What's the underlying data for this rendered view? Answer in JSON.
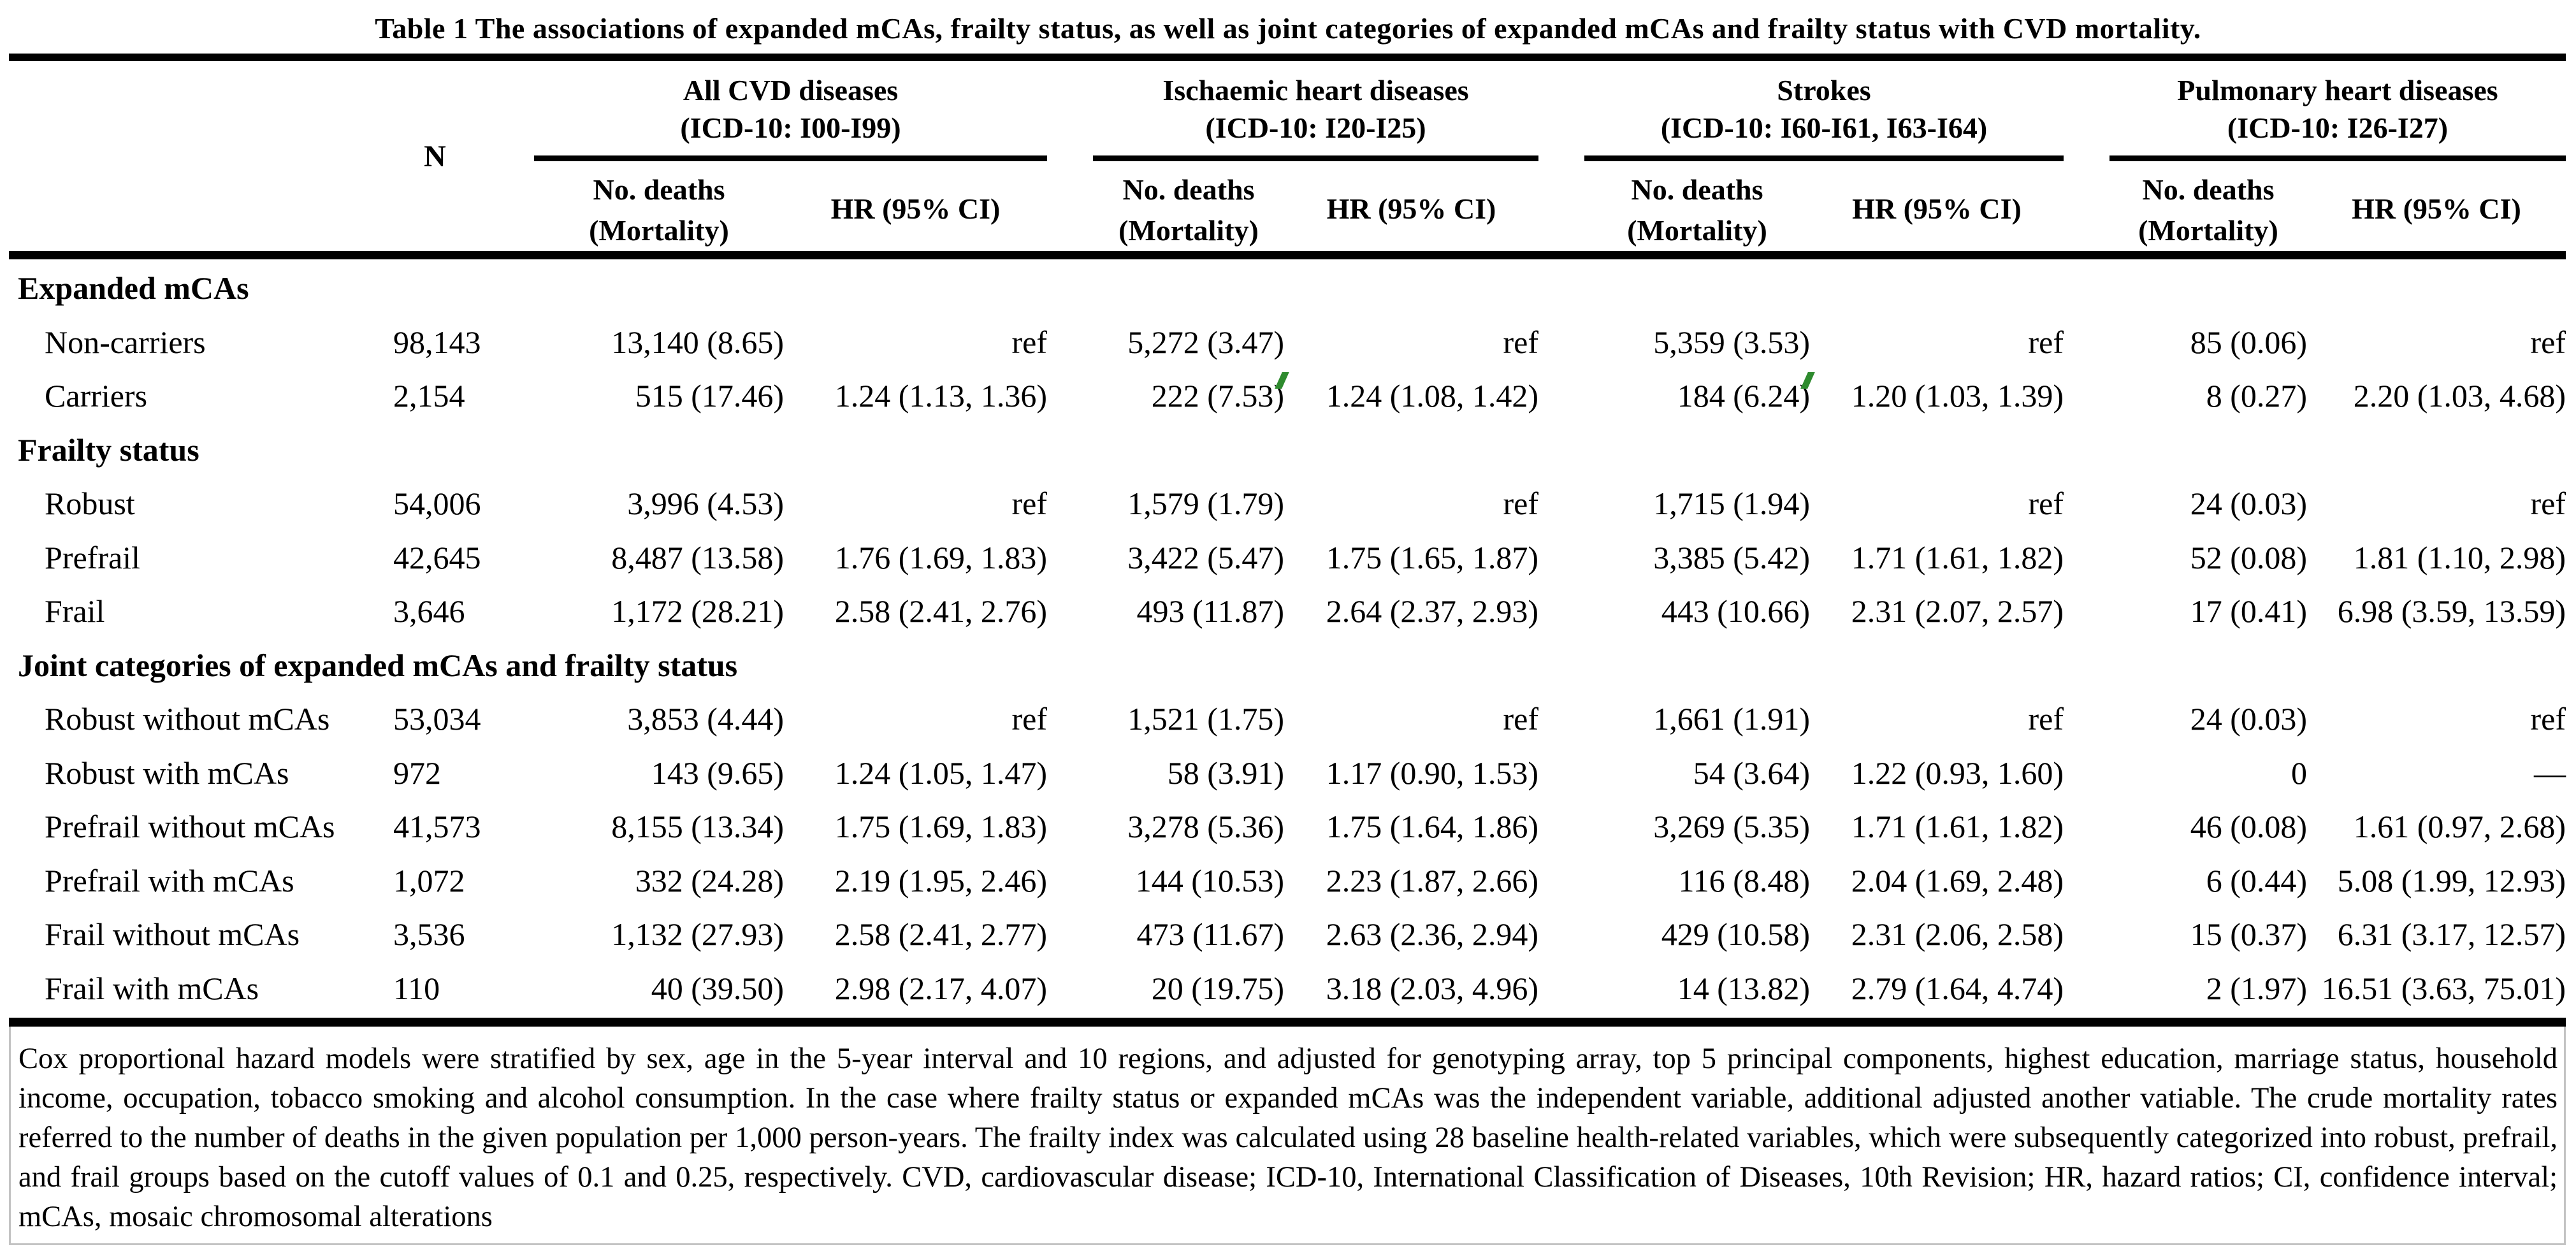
{
  "title": "Table 1 The associations of expanded mCAs, frailty status, as well as joint categories of expanded mCAs and frailty status with CVD mortality.",
  "header": {
    "n_label": "N",
    "sub_deaths_line1": "No. deaths",
    "sub_deaths_line2": "(Mortality)",
    "sub_hr": "HR (95% CI)",
    "groups": [
      {
        "name": "All CVD diseases",
        "icd": "(ICD-10: I00-I99)"
      },
      {
        "name": "Ischaemic heart diseases",
        "icd": "(ICD-10: I20-I25)"
      },
      {
        "name": "Strokes",
        "icd": "(ICD-10: I60-I61, I63-I64)"
      },
      {
        "name": "Pulmonary heart diseases",
        "icd": "(ICD-10: I26-I27)"
      }
    ]
  },
  "rows": [
    {
      "type": "section",
      "label": "Expanded mCAs"
    },
    {
      "type": "data",
      "label": "Non-carriers",
      "n": "98,143",
      "cells": [
        {
          "d": "13,140 (8.65)",
          "h": "ref"
        },
        {
          "d": "5,272 (3.47)",
          "h": "ref"
        },
        {
          "d": "5,359 (3.53)",
          "h": "ref"
        },
        {
          "d": "85 (0.06)",
          "h": "ref"
        }
      ]
    },
    {
      "type": "data",
      "label": "Carriers",
      "n": "2,154",
      "cells": [
        {
          "d": "515 (17.46)",
          "h": "1.24 (1.13, 1.36)"
        },
        {
          "d": "222 (7.53)",
          "h": "1.24 (1.08, 1.42)",
          "green_mark": true
        },
        {
          "d": "184 (6.24)",
          "h": "1.20 (1.03, 1.39)",
          "green_mark": true
        },
        {
          "d": "8 (0.27)",
          "h": "2.20 (1.03, 4.68)"
        }
      ]
    },
    {
      "type": "section",
      "label": "Frailty status"
    },
    {
      "type": "data",
      "label": "Robust",
      "n": "54,006",
      "cells": [
        {
          "d": "3,996 (4.53)",
          "h": "ref"
        },
        {
          "d": "1,579 (1.79)",
          "h": "ref"
        },
        {
          "d": "1,715 (1.94)",
          "h": "ref"
        },
        {
          "d": "24 (0.03)",
          "h": "ref"
        }
      ]
    },
    {
      "type": "data",
      "label": "Prefrail",
      "n": "42,645",
      "cells": [
        {
          "d": "8,487 (13.58)",
          "h": "1.76 (1.69, 1.83)"
        },
        {
          "d": "3,422 (5.47)",
          "h": "1.75 (1.65, 1.87)"
        },
        {
          "d": "3,385 (5.42)",
          "h": "1.71 (1.61, 1.82)"
        },
        {
          "d": "52 (0.08)",
          "h": "1.81 (1.10, 2.98)"
        }
      ]
    },
    {
      "type": "data",
      "label": "Frail",
      "n": "3,646",
      "cells": [
        {
          "d": "1,172 (28.21)",
          "h": "2.58 (2.41, 2.76)"
        },
        {
          "d": "493 (11.87)",
          "h": "2.64 (2.37, 2.93)"
        },
        {
          "d": "443 (10.66)",
          "h": "2.31 (2.07, 2.57)"
        },
        {
          "d": "17 (0.41)",
          "h": "6.98 (3.59, 13.59)"
        }
      ]
    },
    {
      "type": "section",
      "label": "Joint categories of expanded mCAs and frailty status"
    },
    {
      "type": "data",
      "label": "Robust without  mCAs",
      "n": "53,034",
      "cells": [
        {
          "d": "3,853 (4.44)",
          "h": "ref"
        },
        {
          "d": "1,521 (1.75)",
          "h": "ref"
        },
        {
          "d": "1,661 (1.91)",
          "h": "ref"
        },
        {
          "d": "24 (0.03)",
          "h": "ref"
        }
      ]
    },
    {
      "type": "data",
      "label": "Robust with mCAs",
      "n": "972",
      "cells": [
        {
          "d": "143 (9.65)",
          "h": "1.24 (1.05, 1.47)"
        },
        {
          "d": "58 (3.91)",
          "h": "1.17 (0.90, 1.53)"
        },
        {
          "d": "54 (3.64)",
          "h": "1.22 (0.93, 1.60)"
        },
        {
          "d": "0",
          "h": "—"
        }
      ]
    },
    {
      "type": "data",
      "label": "Prefrail without mCAs",
      "n": "41,573",
      "cells": [
        {
          "d": "8,155 (13.34)",
          "h": "1.75 (1.69, 1.83)"
        },
        {
          "d": "3,278 (5.36)",
          "h": "1.75 (1.64, 1.86)"
        },
        {
          "d": "3,269 (5.35)",
          "h": "1.71 (1.61, 1.82)"
        },
        {
          "d": "46 (0.08)",
          "h": "1.61 (0.97, 2.68)"
        }
      ]
    },
    {
      "type": "data",
      "label": "Prefrail with mCAs",
      "n": "1,072",
      "cells": [
        {
          "d": "332 (24.28)",
          "h": "2.19 (1.95, 2.46)"
        },
        {
          "d": "144 (10.53)",
          "h": "2.23 (1.87, 2.66)"
        },
        {
          "d": "116 (8.48)",
          "h": "2.04 (1.69, 2.48)"
        },
        {
          "d": "6 (0.44)",
          "h": "5.08 (1.99, 12.93)"
        }
      ]
    },
    {
      "type": "data",
      "label": "Frail without mCAs",
      "n": "3,536",
      "cells": [
        {
          "d": "1,132 (27.93)",
          "h": "2.58 (2.41, 2.77)"
        },
        {
          "d": "473 (11.67)",
          "h": "2.63 (2.36, 2.94)"
        },
        {
          "d": "429 (10.58)",
          "h": "2.31 (2.06, 2.58)"
        },
        {
          "d": "15 (0.37)",
          "h": "6.31 (3.17, 12.57)"
        }
      ]
    },
    {
      "type": "data",
      "label": "Frail with mCAs",
      "n": "110",
      "cells": [
        {
          "d": "40 (39.50)",
          "h": "2.98 (2.17, 4.07)"
        },
        {
          "d": "20 (19.75)",
          "h": "3.18 (2.03, 4.96)"
        },
        {
          "d": "14 (13.82)",
          "h": "2.79 (1.64, 4.74)"
        },
        {
          "d": "2 (1.97)",
          "h": "16.51 (3.63, 75.01)"
        }
      ]
    }
  ],
  "footnote": {
    "text": "Cox proportional hazard models were stratified by sex, age in the 5-year interval and 10 regions, and adjusted for genotyping array, top 5 principal components, highest education, marriage status, household income, occupation, tobacco smoking and alcohol consumption. In the case where frailty status or expanded mCAs was the independent variable, additional adjusted another vatiable. The crude mortality rates referred to the number of deaths in the given population per 1,000 person-years. The frailty index was calculated using 28 baseline health-related variables, which were subsequently categorized into robust, prefrail, and frail groups based on the cutoff values of 0.1 and 0.25, respectively. CVD, cardiovascular disease; ICD-10, International Classification of Diseases, 10th Revision; HR, hazard ratios; CI, confidence interval; mCAs, mosaic chromosomal alterations"
  },
  "colors": {
    "text": "#000000",
    "background": "#ffffff",
    "rule": "#000000",
    "footnote_border": "#c3c3c3",
    "green_mark": "#2e8b2e"
  }
}
